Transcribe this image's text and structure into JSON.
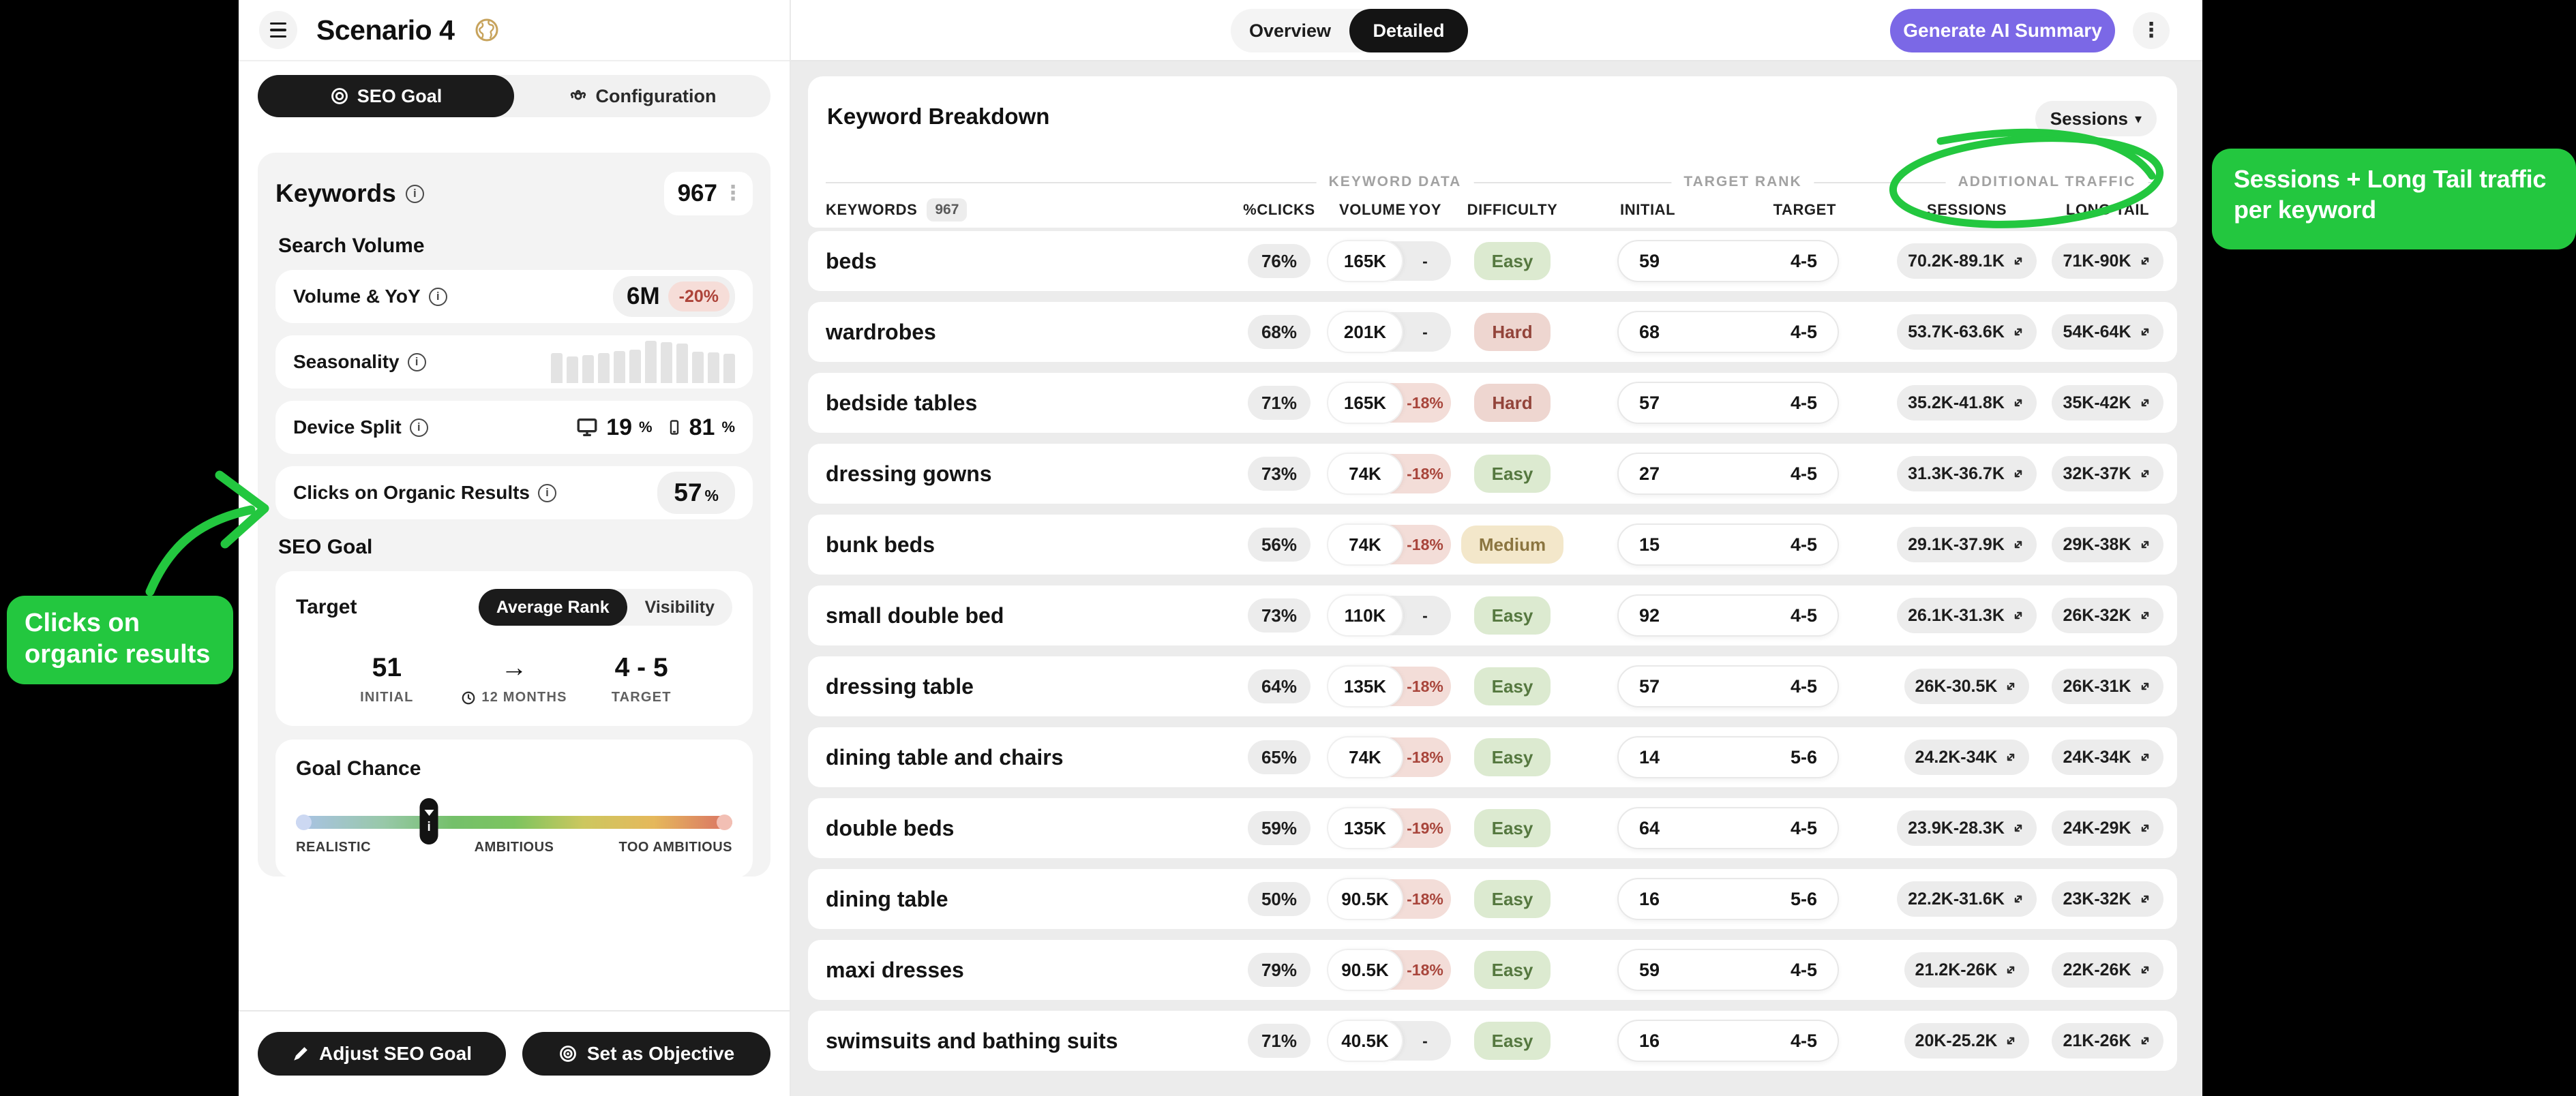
{
  "sidebar": {
    "title": "Scenario 4",
    "tabs": {
      "seo_goal": "SEO Goal",
      "configuration": "Configuration"
    },
    "keywords_panel": {
      "title": "Keywords",
      "count": "967",
      "search_volume_label": "Search Volume",
      "volume_yoy": {
        "label": "Volume & YoY",
        "volume": "6M",
        "yoy": "-20%"
      },
      "seasonality": {
        "label": "Seasonality",
        "bars": [
          71,
          63,
          66,
          71,
          76,
          79,
          100,
          96,
          93,
          74,
          73,
          69
        ]
      },
      "device_split": {
        "label": "Device Split",
        "desktop_pct": "19",
        "mobile_pct": "81",
        "pct_sign": "%"
      },
      "organic_clicks": {
        "label": "Clicks on Organic Results",
        "value": "57",
        "pct_sign": "%"
      },
      "seo_goal_label": "SEO Goal",
      "target_row": {
        "label": "Target",
        "option_average_rank": "Average Rank",
        "option_visibility": "Visibility"
      },
      "goal_stats": {
        "initial_value": "51",
        "initial_label": "INITIAL",
        "arrow": "→",
        "timeline_label": "12 MONTHS",
        "target_value": "4 - 5",
        "target_label": "TARGET"
      },
      "goal_chance": {
        "title": "Goal Chance",
        "marker_pct": 30.5,
        "scale_labels": [
          "REALISTIC",
          "AMBITIOUS",
          "TOO AMBITIOUS"
        ]
      }
    },
    "footer": {
      "adjust_button": "Adjust SEO Goal",
      "objective_button": "Set as Objective"
    }
  },
  "topbar": {
    "overview_tab": "Overview",
    "detailed_tab": "Detailed",
    "generate_ai_button": "Generate AI Summary"
  },
  "table": {
    "title": "Keyword Breakdown",
    "metric_dropdown": "Sessions",
    "groups": {
      "keyword_data": "KEYWORD DATA",
      "target_rank": "TARGET RANK",
      "additional_traffic": "ADDITIONAL TRAFFIC"
    },
    "columns": {
      "keywords": "KEYWORDS",
      "count": "967",
      "clicks": "%CLICKS",
      "volume": "VOLUME",
      "yoy": "YOY",
      "difficulty": "DIFFICULTY",
      "initial": "INITIAL",
      "target": "TARGET",
      "sessions": "SESSIONS",
      "long_tail": "LONG TAIL"
    },
    "rows": [
      {
        "keyword": "beds",
        "clicks": "76%",
        "volume": "165K",
        "yoy": "-",
        "difficulty": "Easy",
        "initial": "59",
        "target": "4-5",
        "sessions": "70.2K-89.1K",
        "long_tail": "71K-90K"
      },
      {
        "keyword": "wardrobes",
        "clicks": "68%",
        "volume": "201K",
        "yoy": "-",
        "difficulty": "Hard",
        "initial": "68",
        "target": "4-5",
        "sessions": "53.7K-63.6K",
        "long_tail": "54K-64K"
      },
      {
        "keyword": "bedside tables",
        "clicks": "71%",
        "volume": "165K",
        "yoy": "-18%",
        "difficulty": "Hard",
        "initial": "57",
        "target": "4-5",
        "sessions": "35.2K-41.8K",
        "long_tail": "35K-42K"
      },
      {
        "keyword": "dressing gowns",
        "clicks": "73%",
        "volume": "74K",
        "yoy": "-18%",
        "difficulty": "Easy",
        "initial": "27",
        "target": "4-5",
        "sessions": "31.3K-36.7K",
        "long_tail": "32K-37K"
      },
      {
        "keyword": "bunk beds",
        "clicks": "56%",
        "volume": "74K",
        "yoy": "-18%",
        "difficulty": "Medium",
        "initial": "15",
        "target": "4-5",
        "sessions": "29.1K-37.9K",
        "long_tail": "29K-38K"
      },
      {
        "keyword": "small double bed",
        "clicks": "73%",
        "volume": "110K",
        "yoy": "-",
        "difficulty": "Easy",
        "initial": "92",
        "target": "4-5",
        "sessions": "26.1K-31.3K",
        "long_tail": "26K-32K"
      },
      {
        "keyword": "dressing table",
        "clicks": "64%",
        "volume": "135K",
        "yoy": "-18%",
        "difficulty": "Easy",
        "initial": "57",
        "target": "4-5",
        "sessions": "26K-30.5K",
        "long_tail": "26K-31K"
      },
      {
        "keyword": "dining table and chairs",
        "clicks": "65%",
        "volume": "74K",
        "yoy": "-18%",
        "difficulty": "Easy",
        "initial": "14",
        "target": "5-6",
        "sessions": "24.2K-34K",
        "long_tail": "24K-34K"
      },
      {
        "keyword": "double beds",
        "clicks": "59%",
        "volume": "135K",
        "yoy": "-19%",
        "difficulty": "Easy",
        "initial": "64",
        "target": "4-5",
        "sessions": "23.9K-28.3K",
        "long_tail": "24K-29K"
      },
      {
        "keyword": "dining table",
        "clicks": "50%",
        "volume": "90.5K",
        "yoy": "-18%",
        "difficulty": "Easy",
        "initial": "16",
        "target": "5-6",
        "sessions": "22.2K-31.6K",
        "long_tail": "23K-32K"
      },
      {
        "keyword": "maxi dresses",
        "clicks": "79%",
        "volume": "90.5K",
        "yoy": "-18%",
        "difficulty": "Easy",
        "initial": "59",
        "target": "4-5",
        "sessions": "21.2K-26K",
        "long_tail": "22K-26K"
      },
      {
        "keyword": "swimsuits and bathing suits",
        "clicks": "71%",
        "volume": "40.5K",
        "yoy": "-",
        "difficulty": "Easy",
        "initial": "16",
        "target": "4-5",
        "sessions": "20K-25.2K",
        "long_tail": "21K-26K"
      }
    ]
  },
  "annotations": {
    "left_note": {
      "line1": "Clicks on",
      "line2": "organic results"
    },
    "right_note": {
      "line1": "Sessions + Long Tail traffic",
      "line2": "per keyword"
    }
  },
  "colors": {
    "annotation_green": "#23c73f",
    "accent_purple": "#7b68e6",
    "negative_red": "#ad4339",
    "easy_green": "#55783f",
    "hard_red": "#93443a",
    "medium_amber": "#8b7540"
  }
}
